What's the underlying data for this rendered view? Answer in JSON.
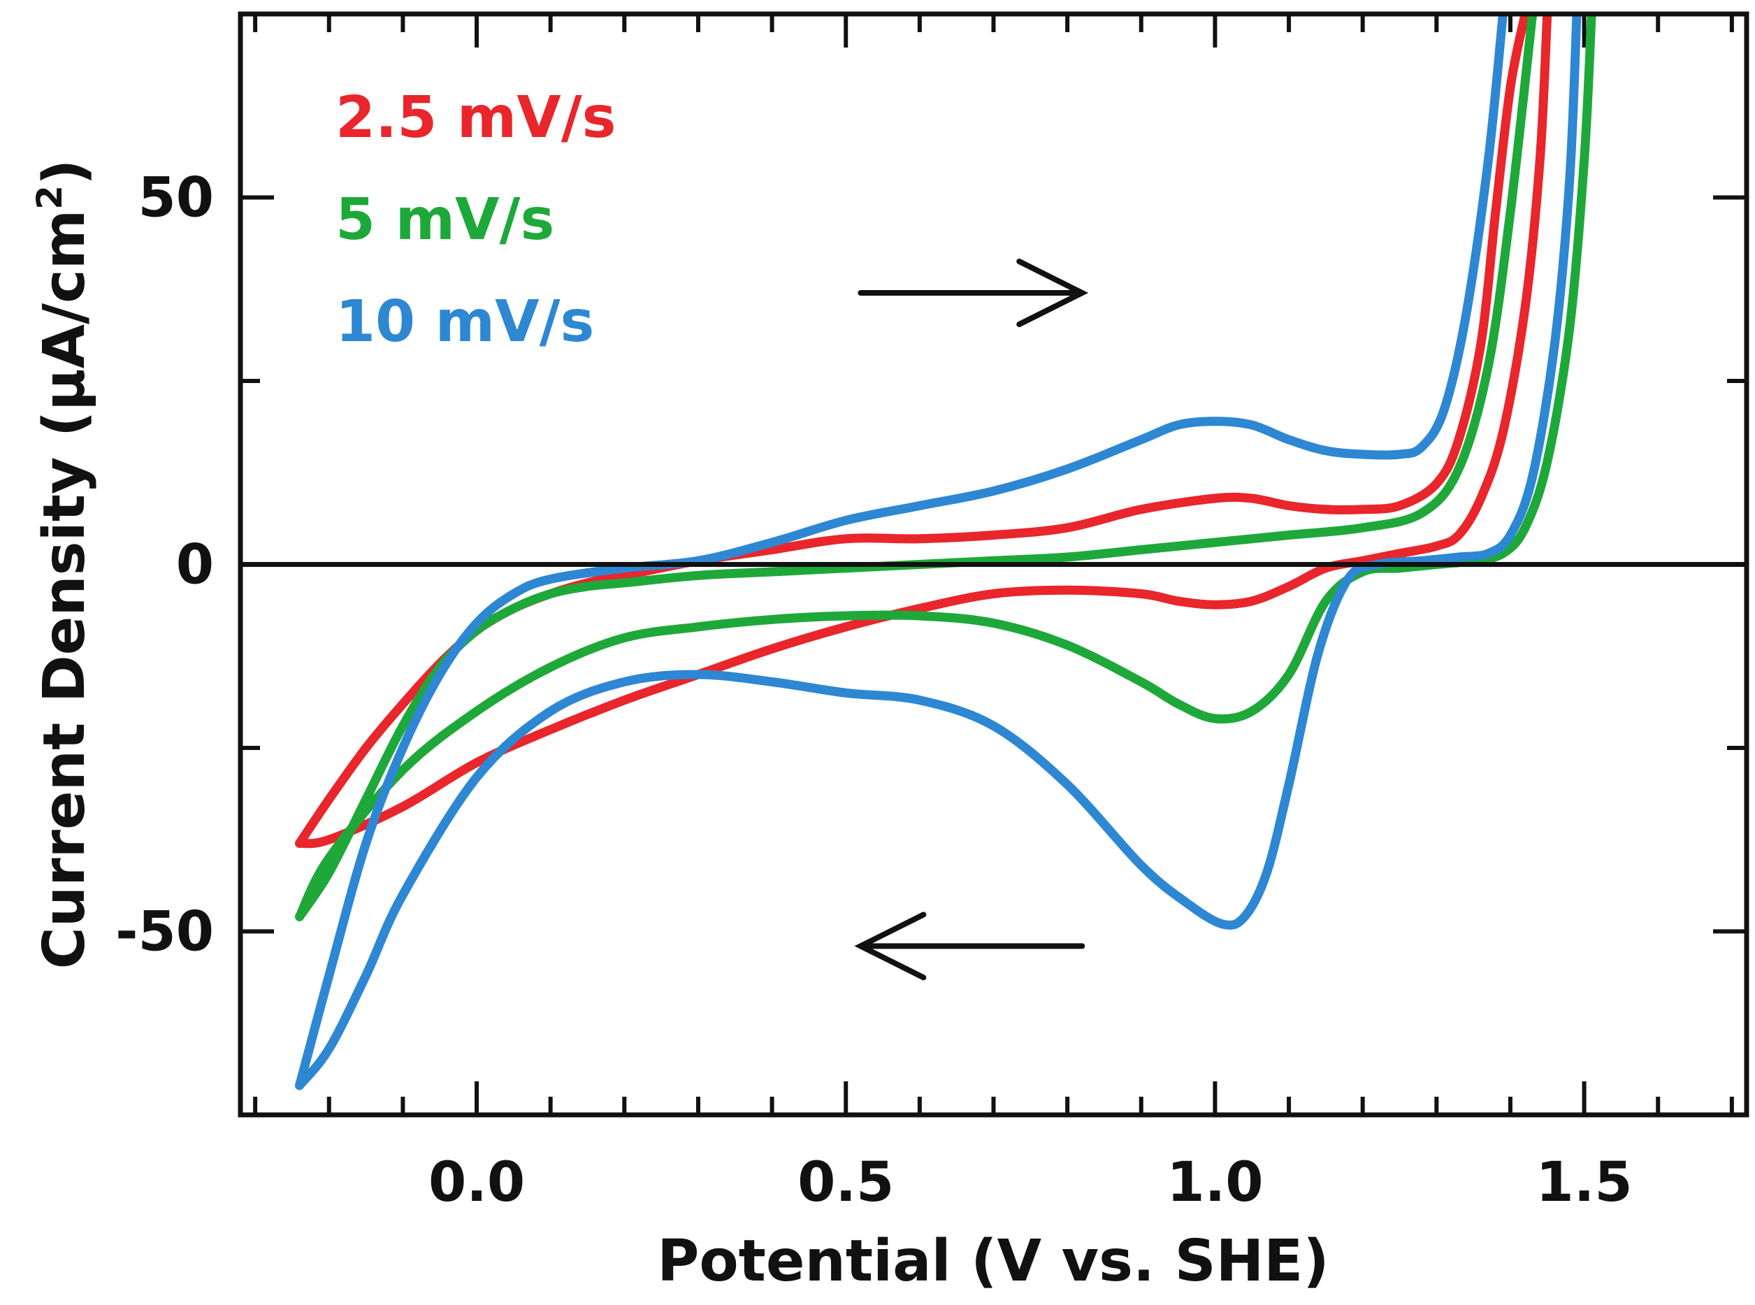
{
  "chart_data": {
    "type": "line",
    "title": "",
    "xlabel": "Potential (V vs. SHE)",
    "ylabel_main": "Current Density (μA/cm",
    "ylabel_sup": "2",
    "ylabel_close": ")",
    "xlim": [
      -0.32,
      1.72
    ],
    "ylim": [
      -75,
      75
    ],
    "xticks": [
      0.0,
      0.5,
      1.0,
      1.5
    ],
    "xtick_labels": [
      "0.0",
      "0.5",
      "1.0",
      "1.5"
    ],
    "yticks": [
      -50,
      0,
      50
    ],
    "ytick_labels": [
      "-50",
      "0",
      "50"
    ],
    "x_minor_step": 0.1,
    "y_minor_step": 25,
    "grid": false,
    "legend_position": "top-left",
    "zero_line": true,
    "annotations": [
      {
        "label": "forward-scan-arrow",
        "direction": "right",
        "x_from": 0.52,
        "x_to": 0.82,
        "y": 37
      },
      {
        "label": "reverse-scan-arrow",
        "direction": "left",
        "x_from": 0.82,
        "x_to": 0.52,
        "y": -52
      }
    ],
    "series": [
      {
        "name": "2.5 mV/s",
        "color": "#e8262b",
        "anodic": [
          [
            -0.24,
            -38
          ],
          [
            -0.2,
            -32
          ],
          [
            -0.15,
            -25
          ],
          [
            -0.1,
            -19
          ],
          [
            -0.05,
            -13.5
          ],
          [
            0.0,
            -9
          ],
          [
            0.05,
            -6
          ],
          [
            0.1,
            -4
          ],
          [
            0.15,
            -2.5
          ],
          [
            0.2,
            -1.5
          ],
          [
            0.3,
            0.5
          ],
          [
            0.4,
            2
          ],
          [
            0.5,
            3.5
          ],
          [
            0.6,
            3.5
          ],
          [
            0.7,
            4
          ],
          [
            0.8,
            5
          ],
          [
            0.9,
            7.5
          ],
          [
            1.0,
            9
          ],
          [
            1.05,
            9
          ],
          [
            1.1,
            8
          ],
          [
            1.15,
            7.5
          ],
          [
            1.2,
            7.5
          ],
          [
            1.25,
            8
          ],
          [
            1.3,
            11
          ],
          [
            1.33,
            17
          ],
          [
            1.36,
            30
          ],
          [
            1.38,
            48
          ],
          [
            1.4,
            65
          ],
          [
            1.42,
            75
          ]
        ],
        "cathodic": [
          [
            1.45,
            75
          ],
          [
            1.44,
            55
          ],
          [
            1.42,
            35
          ],
          [
            1.39,
            18
          ],
          [
            1.36,
            9
          ],
          [
            1.33,
            4
          ],
          [
            1.3,
            2.5
          ],
          [
            1.25,
            1.5
          ],
          [
            1.2,
            0.5
          ],
          [
            1.15,
            -0.5
          ],
          [
            1.1,
            -3
          ],
          [
            1.05,
            -5
          ],
          [
            1.0,
            -5.5
          ],
          [
            0.95,
            -5
          ],
          [
            0.9,
            -4
          ],
          [
            0.8,
            -3.5
          ],
          [
            0.7,
            -4
          ],
          [
            0.6,
            -6
          ],
          [
            0.5,
            -8.5
          ],
          [
            0.4,
            -11.5
          ],
          [
            0.3,
            -15
          ],
          [
            0.2,
            -18.5
          ],
          [
            0.1,
            -22.5
          ],
          [
            0.0,
            -27
          ],
          [
            -0.1,
            -33
          ],
          [
            -0.2,
            -37.5
          ],
          [
            -0.24,
            -38
          ]
        ]
      },
      {
        "name": "5 mV/s",
        "color": "#1fa83a",
        "anodic": [
          [
            -0.24,
            -48
          ],
          [
            -0.2,
            -42
          ],
          [
            -0.15,
            -32
          ],
          [
            -0.1,
            -22
          ],
          [
            -0.05,
            -14
          ],
          [
            0.0,
            -9
          ],
          [
            0.05,
            -6
          ],
          [
            0.1,
            -4
          ],
          [
            0.15,
            -3
          ],
          [
            0.2,
            -2.5
          ],
          [
            0.3,
            -1.5
          ],
          [
            0.4,
            -1
          ],
          [
            0.5,
            -0.5
          ],
          [
            0.6,
            0
          ],
          [
            0.7,
            0.5
          ],
          [
            0.8,
            1
          ],
          [
            0.9,
            2
          ],
          [
            1.0,
            3
          ],
          [
            1.05,
            3.5
          ],
          [
            1.1,
            4
          ],
          [
            1.2,
            5
          ],
          [
            1.28,
            7
          ],
          [
            1.33,
            13
          ],
          [
            1.37,
            27
          ],
          [
            1.4,
            48
          ],
          [
            1.43,
            75
          ]
        ],
        "cathodic": [
          [
            1.51,
            75
          ],
          [
            1.5,
            55
          ],
          [
            1.48,
            32
          ],
          [
            1.45,
            14
          ],
          [
            1.42,
            5
          ],
          [
            1.39,
            1.5
          ],
          [
            1.35,
            0.5
          ],
          [
            1.3,
            0
          ],
          [
            1.25,
            -0.5
          ],
          [
            1.2,
            -1
          ],
          [
            1.15,
            -5
          ],
          [
            1.1,
            -15
          ],
          [
            1.05,
            -20
          ],
          [
            1.0,
            -21
          ],
          [
            0.95,
            -19
          ],
          [
            0.9,
            -16
          ],
          [
            0.8,
            -11
          ],
          [
            0.7,
            -8
          ],
          [
            0.6,
            -7
          ],
          [
            0.5,
            -7
          ],
          [
            0.4,
            -7.5
          ],
          [
            0.3,
            -8.5
          ],
          [
            0.2,
            -10
          ],
          [
            0.1,
            -14
          ],
          [
            0.0,
            -20
          ],
          [
            -0.1,
            -28
          ],
          [
            -0.2,
            -40
          ],
          [
            -0.24,
            -48
          ]
        ]
      },
      {
        "name": "10 mV/s",
        "color": "#2e87d3",
        "anodic": [
          [
            -0.24,
            -71
          ],
          [
            -0.2,
            -56
          ],
          [
            -0.15,
            -38
          ],
          [
            -0.1,
            -25
          ],
          [
            -0.05,
            -15
          ],
          [
            0.0,
            -8
          ],
          [
            0.05,
            -4
          ],
          [
            0.1,
            -2
          ],
          [
            0.2,
            -0.5
          ],
          [
            0.3,
            0.5
          ],
          [
            0.4,
            3
          ],
          [
            0.5,
            6
          ],
          [
            0.6,
            8
          ],
          [
            0.7,
            10
          ],
          [
            0.8,
            13
          ],
          [
            0.9,
            17
          ],
          [
            0.95,
            19
          ],
          [
            1.0,
            19.5
          ],
          [
            1.05,
            19
          ],
          [
            1.1,
            17
          ],
          [
            1.15,
            15.5
          ],
          [
            1.2,
            15
          ],
          [
            1.25,
            15
          ],
          [
            1.28,
            16
          ],
          [
            1.31,
            21
          ],
          [
            1.34,
            34
          ],
          [
            1.37,
            55
          ],
          [
            1.39,
            75
          ]
        ],
        "cathodic": [
          [
            1.49,
            75
          ],
          [
            1.48,
            52
          ],
          [
            1.46,
            30
          ],
          [
            1.43,
            12
          ],
          [
            1.4,
            4
          ],
          [
            1.37,
            1.5
          ],
          [
            1.33,
            1
          ],
          [
            1.28,
            0.5
          ],
          [
            1.22,
            0
          ],
          [
            1.18,
            -2
          ],
          [
            1.14,
            -12
          ],
          [
            1.1,
            -30
          ],
          [
            1.07,
            -42
          ],
          [
            1.04,
            -48
          ],
          [
            1.01,
            -49
          ],
          [
            0.96,
            -46
          ],
          [
            0.9,
            -41
          ],
          [
            0.8,
            -30
          ],
          [
            0.7,
            -22
          ],
          [
            0.6,
            -18.5
          ],
          [
            0.5,
            -17.5
          ],
          [
            0.4,
            -16
          ],
          [
            0.3,
            -15
          ],
          [
            0.2,
            -16
          ],
          [
            0.1,
            -20
          ],
          [
            0.0,
            -29
          ],
          [
            -0.1,
            -45
          ],
          [
            -0.15,
            -56
          ],
          [
            -0.2,
            -66
          ],
          [
            -0.24,
            -71
          ]
        ]
      }
    ]
  }
}
